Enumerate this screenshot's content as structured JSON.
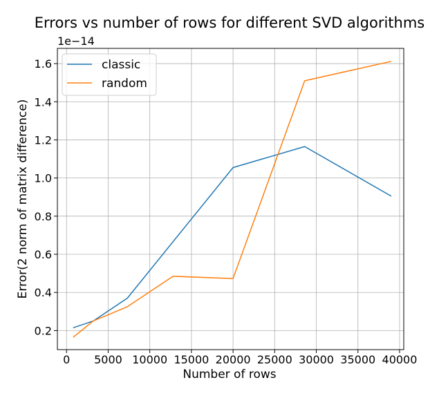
{
  "chart_data": {
    "type": "line",
    "title": "Errors vs number of rows for different SVD algorithms",
    "xlabel": "Number of rows",
    "ylabel": "Error(2 norm of matrix difference)",
    "y_scale_label": "1e−14",
    "xlim": [
      -1100,
      40500
    ],
    "ylim": [
      0.1,
      1.68
    ],
    "x_ticks": [
      0,
      5000,
      10000,
      15000,
      20000,
      25000,
      30000,
      35000,
      40000
    ],
    "x_tick_labels": [
      "0",
      "5000",
      "10000",
      "15000",
      "20000",
      "25000",
      "30000",
      "35000",
      "40000"
    ],
    "y_ticks": [
      0.2,
      0.4,
      0.6,
      0.8,
      1.0,
      1.2,
      1.4,
      1.6
    ],
    "y_tick_labels": [
      "0.2",
      "0.4",
      "0.6",
      "0.8",
      "1.0",
      "1.2",
      "1.4",
      "1.6"
    ],
    "grid": true,
    "legend_position": "top-left",
    "series": [
      {
        "name": "classic",
        "color": "#1f77b4",
        "x": [
          800,
          3200,
          7300,
          20000,
          28600,
          39000
        ],
        "y": [
          0.215,
          0.25,
          0.37,
          1.055,
          1.165,
          0.905
        ]
      },
      {
        "name": "random",
        "color": "#ff7f0e",
        "x": [
          800,
          3200,
          7300,
          12800,
          20000,
          28600,
          39000
        ],
        "y": [
          0.165,
          0.25,
          0.325,
          0.485,
          0.473,
          1.51,
          1.612
        ]
      }
    ]
  }
}
